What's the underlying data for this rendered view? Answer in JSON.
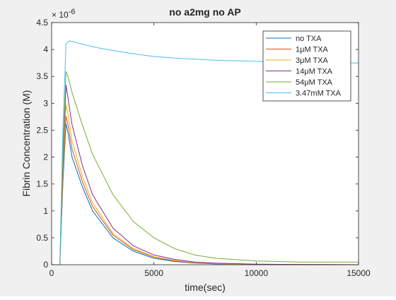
{
  "chart_data": {
    "type": "line",
    "title": "no a2mg no AP",
    "xlabel": "time(sec)",
    "ylabel": "Fibrin Concentration (M)",
    "y_exponent_label": "× 10",
    "y_exponent_power": "-6",
    "xlim": [
      0,
      15000
    ],
    "ylim": [
      0,
      4.5
    ],
    "x_ticks": [
      0,
      5000,
      10000,
      15000
    ],
    "x_tick_labels": [
      "0",
      "5000",
      "10000",
      "15000"
    ],
    "y_ticks": [
      0,
      0.5,
      1,
      1.5,
      2,
      2.5,
      3,
      3.5,
      4,
      4.5
    ],
    "y_tick_labels": [
      "0",
      "0.5",
      "1",
      "1.5",
      "2",
      "2.5",
      "3",
      "3.5",
      "4",
      "4.5"
    ],
    "grid": false,
    "legend_position": "top-right",
    "series": [
      {
        "name": "no TXA",
        "color": "#0072BD",
        "x": [
          0,
          400,
          550,
          700,
          800,
          1000,
          1500,
          2000,
          3000,
          4000,
          5000,
          6000,
          7000,
          8000,
          10000,
          12000,
          15000
        ],
        "y": [
          0,
          0,
          1.5,
          2.62,
          2.45,
          2.0,
          1.45,
          1.0,
          0.5,
          0.25,
          0.12,
          0.06,
          0.03,
          0.015,
          0.005,
          0.002,
          0.0
        ]
      },
      {
        "name": "1μM TXA",
        "color": "#D95319",
        "x": [
          0,
          400,
          550,
          700,
          800,
          1000,
          1500,
          2000,
          3000,
          4000,
          5000,
          6000,
          7000,
          8000,
          10000,
          12000,
          15000
        ],
        "y": [
          0,
          0,
          1.6,
          2.76,
          2.6,
          2.15,
          1.55,
          1.08,
          0.55,
          0.28,
          0.14,
          0.07,
          0.035,
          0.018,
          0.006,
          0.002,
          0.0
        ]
      },
      {
        "name": "3μM TXA",
        "color": "#EDB120",
        "x": [
          0,
          400,
          550,
          700,
          800,
          1000,
          1500,
          2000,
          3000,
          4000,
          5000,
          6000,
          7000,
          8000,
          10000,
          12000,
          15000
        ],
        "y": [
          0,
          0,
          1.7,
          2.97,
          2.8,
          2.3,
          1.65,
          1.15,
          0.58,
          0.3,
          0.15,
          0.08,
          0.04,
          0.02,
          0.007,
          0.003,
          0.0
        ]
      },
      {
        "name": "14μM TXA",
        "color": "#7E2F8E",
        "x": [
          0,
          400,
          550,
          700,
          800,
          1000,
          1500,
          2000,
          3000,
          4000,
          5000,
          6000,
          7000,
          8000,
          10000,
          12000,
          15000
        ],
        "y": [
          0,
          0,
          1.9,
          3.34,
          3.1,
          2.6,
          1.85,
          1.3,
          0.68,
          0.35,
          0.18,
          0.1,
          0.05,
          0.03,
          0.01,
          0.004,
          0.0
        ]
      },
      {
        "name": "54μM TXA",
        "color": "#77AC30",
        "x": [
          0,
          400,
          550,
          700,
          800,
          1000,
          1500,
          2000,
          3000,
          4000,
          5000,
          6000,
          7000,
          8000,
          10000,
          12000,
          15000
        ],
        "y": [
          0,
          0,
          2.1,
          3.59,
          3.5,
          3.2,
          2.6,
          2.05,
          1.3,
          0.8,
          0.5,
          0.3,
          0.18,
          0.12,
          0.07,
          0.05,
          0.05
        ]
      },
      {
        "name": "3.47mM TXA",
        "color": "#4DBEEE",
        "x": [
          0,
          400,
          550,
          700,
          850,
          1000,
          1500,
          2000,
          3000,
          4000,
          5000,
          6000,
          7000,
          8000,
          10000,
          12000,
          15000
        ],
        "y": [
          0,
          0,
          2.5,
          4.1,
          4.16,
          4.15,
          4.1,
          4.05,
          3.98,
          3.92,
          3.87,
          3.84,
          3.82,
          3.8,
          3.78,
          3.76,
          3.75
        ]
      }
    ]
  }
}
